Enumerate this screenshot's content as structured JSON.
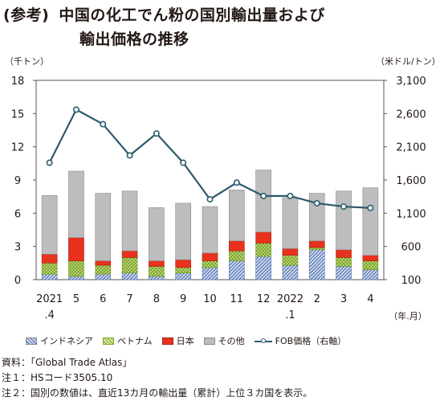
{
  "title": {
    "tag": "(参考)",
    "line1": "中国の化工でん粉の国別輸出量および",
    "line2": "輸出価格の推移"
  },
  "units": {
    "left": "（千トン）",
    "right": "（米ドル/トン）",
    "x": "（年.月）"
  },
  "notes": [
    "資料：「Global Trade Atlas」",
    "注１：HSコード3505.10",
    "注２：国別の数値は、直近13カ月の輸出量（累計）上位３カ国を表示。"
  ],
  "colors": {
    "indonesia": "#4f6fb0",
    "vietnam": "#b8d36a",
    "japan": "#e8321e",
    "other": "#bdbdbd",
    "line": "#2c5b6c"
  },
  "chart_data": {
    "type": "bar",
    "stacked": true,
    "categories": [
      "2021\n.4",
      "5",
      "6",
      "7",
      "8",
      "9",
      "10",
      "11",
      "12",
      "2022\n.1",
      "2",
      "3",
      "4"
    ],
    "series": [
      {
        "name": "インドネシア",
        "values": [
          0.5,
          0.3,
          0.5,
          0.6,
          0.3,
          0.6,
          1.1,
          1.7,
          2.1,
          1.3,
          2.7,
          1.2,
          0.9
        ]
      },
      {
        "name": "ベトナム",
        "values": [
          1.0,
          1.4,
          0.8,
          1.4,
          0.9,
          0.5,
          0.6,
          0.9,
          1.2,
          0.9,
          0.2,
          0.8,
          0.8
        ]
      },
      {
        "name": "日本",
        "values": [
          0.8,
          2.1,
          0.4,
          0.6,
          0.5,
          0.7,
          0.7,
          0.9,
          1.0,
          0.6,
          0.6,
          0.7,
          0.5
        ]
      },
      {
        "name": "その他",
        "values": [
          5.3,
          6.0,
          6.1,
          5.4,
          4.8,
          5.1,
          4.2,
          4.6,
          5.6,
          4.6,
          4.3,
          5.3,
          6.1
        ]
      }
    ],
    "line_series": {
      "name": "FOB価格（右軸）",
      "values": [
        1860,
        2660,
        2440,
        1970,
        2300,
        1860,
        1310,
        1560,
        1360,
        1360,
        1250,
        1200,
        1180
      ]
    },
    "y_left": {
      "min": 0,
      "max": 18,
      "ticks": [
        "0",
        "3",
        "6",
        "9",
        "12",
        "15",
        "18"
      ]
    },
    "y_right": {
      "min": 100,
      "max": 3100,
      "ticks": [
        "100",
        "600",
        "1,100",
        "1,600",
        "2,100",
        "2,600",
        "3,100"
      ]
    },
    "grid": false,
    "legend": "bottom"
  }
}
